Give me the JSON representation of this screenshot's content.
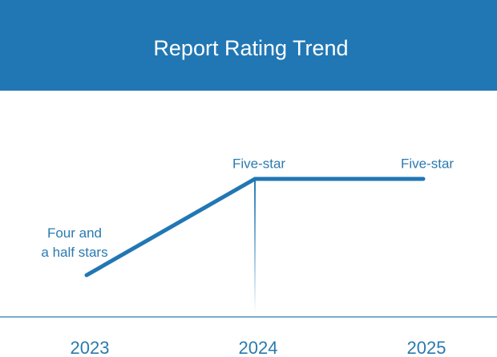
{
  "chart_data": {
    "type": "line",
    "title": "Report Rating Trend",
    "categories": [
      "2023",
      "2024",
      "2025"
    ],
    "values": [
      4.5,
      5,
      5
    ],
    "value_labels": [
      "Four and\na half stars",
      "Five-star",
      "Five-star"
    ],
    "color": "#2177b4"
  }
}
